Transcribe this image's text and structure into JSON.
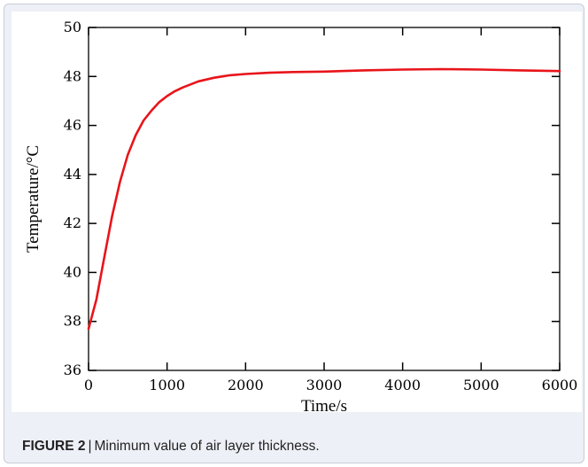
{
  "chart_data": {
    "type": "line",
    "xlabel": "Time/s",
    "ylabel": "Temperature/°C",
    "xlim": [
      0,
      6000
    ],
    "ylim": [
      36,
      50
    ],
    "x_ticks": [
      0,
      1000,
      2000,
      3000,
      4000,
      5000,
      6000
    ],
    "y_ticks": [
      36,
      38,
      40,
      42,
      44,
      46,
      48,
      50
    ],
    "grid": false,
    "series": [
      {
        "color": "#e8141a",
        "x": [
          0,
          100,
          200,
          300,
          400,
          500,
          600,
          700,
          800,
          900,
          1000,
          1100,
          1200,
          1400,
          1600,
          1800,
          2000,
          2300,
          2600,
          3000,
          3500,
          4000,
          4500,
          5000,
          5500,
          6000
        ],
        "y": [
          37.7,
          38.9,
          40.6,
          42.3,
          43.7,
          44.8,
          45.6,
          46.2,
          46.6,
          46.95,
          47.2,
          47.4,
          47.55,
          47.8,
          47.95,
          48.05,
          48.1,
          48.15,
          48.18,
          48.2,
          48.25,
          48.28,
          48.3,
          48.28,
          48.25,
          48.22
        ]
      }
    ]
  },
  "caption": {
    "label": "FIGURE 2",
    "separator": "|",
    "text": "Minimum value of air layer thickness."
  }
}
